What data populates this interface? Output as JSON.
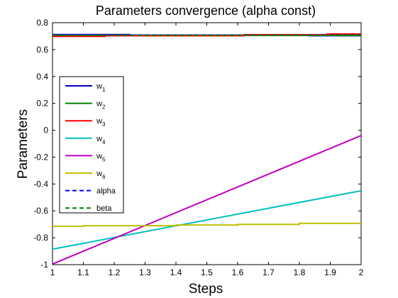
{
  "chart_data": {
    "type": "line",
    "title": "Parameters convergence (alpha const)",
    "xlabel": "Steps",
    "ylabel": "Parameters",
    "xlim": [
      1,
      2
    ],
    "ylim": [
      -1,
      0.8
    ],
    "xticks": [
      "1",
      "1.1",
      "1.2",
      "1.3",
      "1.4",
      "1.5",
      "1.6",
      "1.7",
      "1.8",
      "1.9",
      "2"
    ],
    "yticks": [
      "-1",
      "-0.8",
      "-0.6",
      "-0.4",
      "-0.2",
      "0",
      "0.2",
      "0.4",
      "0.6",
      "0.8"
    ],
    "grid": false,
    "legend_position": "center-left",
    "series": [
      {
        "name": "w",
        "sub": "1",
        "color": "#0000cc",
        "dash": "solid",
        "x": [
          1,
          1.25,
          1.25,
          1.83,
          1.83,
          2
        ],
        "y": [
          0.712,
          0.712,
          0.707,
          0.707,
          0.703,
          0.703
        ]
      },
      {
        "name": "w",
        "sub": "2",
        "color": "#008000",
        "dash": "solid",
        "x": [
          1,
          2
        ],
        "y": [
          0.705,
          0.705
        ]
      },
      {
        "name": "w",
        "sub": "3",
        "color": "#ff0000",
        "dash": "solid",
        "x": [
          1,
          1.17,
          1.17,
          1.62,
          1.62,
          1.89,
          1.89,
          2
        ],
        "y": [
          0.698,
          0.698,
          0.703,
          0.703,
          0.711,
          0.711,
          0.716,
          0.716
        ]
      },
      {
        "name": "w",
        "sub": "4",
        "color": "#00bfbf",
        "dash": "solid",
        "x": [
          1,
          2
        ],
        "y": [
          -0.885,
          -0.45
        ]
      },
      {
        "name": "w",
        "sub": "5",
        "color": "#bf00bf",
        "dash": "solid",
        "x": [
          1,
          2
        ],
        "y": [
          -0.995,
          -0.04
        ]
      },
      {
        "name": "w",
        "sub": "6",
        "color": "#bfbf00",
        "dash": "solid",
        "x": [
          1,
          1.1,
          1.1,
          1.4,
          1.4,
          1.6,
          1.6,
          1.8,
          1.8,
          2
        ],
        "y": [
          -0.715,
          -0.715,
          -0.71,
          -0.71,
          -0.705,
          -0.705,
          -0.7,
          -0.7,
          -0.692,
          -0.692
        ]
      },
      {
        "name": "alpha",
        "sub": "",
        "color": "#0000ff",
        "dash": "dashed",
        "x": [
          1,
          2
        ],
        "y": [
          0.708,
          0.708
        ]
      },
      {
        "name": "beta",
        "sub": "",
        "color": "#008000",
        "dash": "dashed",
        "x": [
          1,
          2
        ],
        "y": [
          0.706,
          0.706
        ]
      }
    ]
  }
}
